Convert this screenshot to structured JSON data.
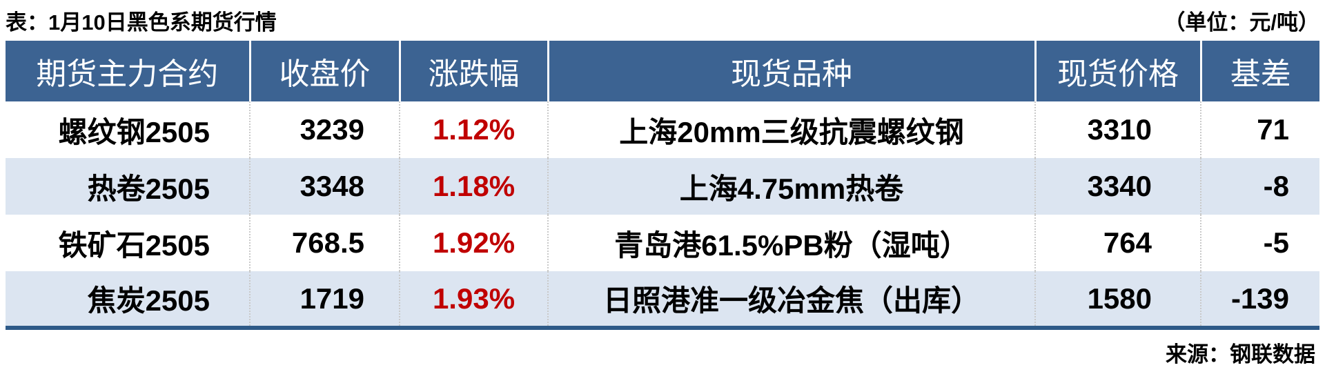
{
  "chart_data": {
    "type": "table",
    "title": "表：1月10日黑色系期货行情",
    "unit_note": "（单位：元/吨）",
    "source": "来源：钢联数据",
    "columns": [
      "期货主力合约",
      "收盘价",
      "涨跌幅",
      "现货品种",
      "现货价格",
      "基差"
    ],
    "rows": [
      [
        "螺纹钢2505",
        "3239",
        "1.12%",
        "上海20mm三级抗震螺纹钢",
        "3310",
        "71"
      ],
      [
        "热卷2505",
        "3348",
        "1.18%",
        "上海4.75mm热卷",
        "3340",
        "-8"
      ],
      [
        "铁矿石2505",
        "768.5",
        "1.92%",
        "青岛港61.5%PB粉（湿吨）",
        "764",
        "-5"
      ],
      [
        "焦炭2505",
        "1719",
        "1.93%",
        "日照港准一级冶金焦（出库）",
        "1580",
        "-139"
      ]
    ]
  },
  "colors": {
    "header_bg": "#3c6392",
    "row_alt_bg": "#dce5f1",
    "table_border": "#2e5a88",
    "change_red": "#c00000",
    "header_text": "#ffffff",
    "body_text": "#000000",
    "cell_divider": "#c9c9c9"
  }
}
